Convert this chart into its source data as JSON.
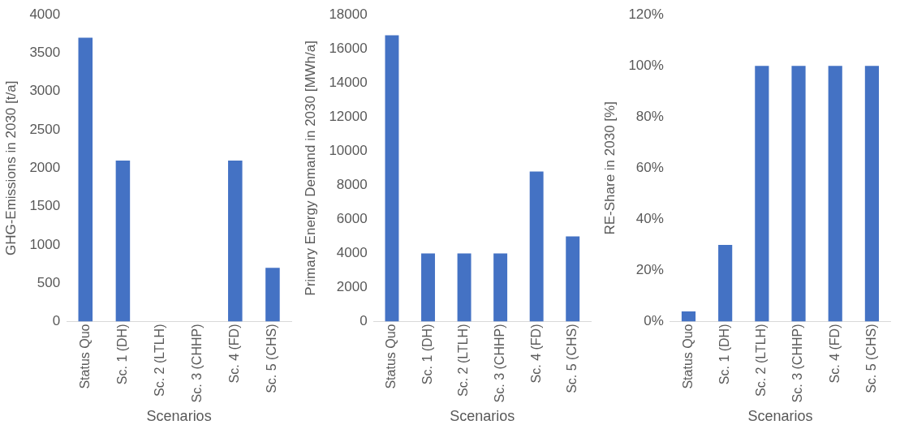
{
  "chart_data": [
    {
      "type": "bar",
      "categories": [
        "Status Quo",
        "Sc. 1 (DH)",
        "Sc. 2 (LTLH)",
        "Sc. 3 (CHHP)",
        "Sc. 4 (FD)",
        "Sc. 5 (CHS)"
      ],
      "values": [
        3700,
        2100,
        0,
        0,
        2100,
        700
      ],
      "color": "#4472c4",
      "ylim": [
        0,
        4000
      ],
      "yticks": [
        0,
        500,
        1000,
        1500,
        2000,
        2500,
        3000,
        3500,
        4000
      ],
      "xlabel": "Scenarios",
      "ylabel": "GHG-Emissions in 2030 [t/a]"
    },
    {
      "type": "bar",
      "categories": [
        "Status Quo",
        "Sc. 1 (DH)",
        "Sc. 2 (LTLH)",
        "Sc. 3 (CHHP)",
        "Sc. 4 (FD)",
        "Sc. 5 (CHS)"
      ],
      "values": [
        16800,
        4000,
        4000,
        4000,
        8800,
        5000
      ],
      "color": "#4472c4",
      "ylim": [
        0,
        18000
      ],
      "yticks": [
        0,
        2000,
        4000,
        6000,
        8000,
        10000,
        12000,
        14000,
        16000,
        18000
      ],
      "xlabel": "Scenarios",
      "ylabel": "Primary Energy Demand in 2030 [MWh/a]"
    },
    {
      "type": "bar",
      "categories": [
        "Status Quo",
        "Sc. 1 (DH)",
        "Sc. 2 (LTLH)",
        "Sc. 3 (CHHP)",
        "Sc. 4 (FD)",
        "Sc. 5 (CHS)"
      ],
      "values": [
        4,
        30,
        100,
        100,
        100,
        100
      ],
      "color": "#4472c4",
      "ylim": [
        0,
        120
      ],
      "yticks": [
        {
          "value": 0,
          "label": "0%"
        },
        {
          "value": 20,
          "label": "20%"
        },
        {
          "value": 40,
          "label": "40%"
        },
        {
          "value": 60,
          "label": "60%"
        },
        {
          "value": 80,
          "label": "80%"
        },
        {
          "value": 100,
          "label": "100%"
        },
        {
          "value": 120,
          "label": "120%"
        }
      ],
      "xlabel": "Scenarios",
      "ylabel": "RE-Share in 2030 [%]"
    }
  ]
}
